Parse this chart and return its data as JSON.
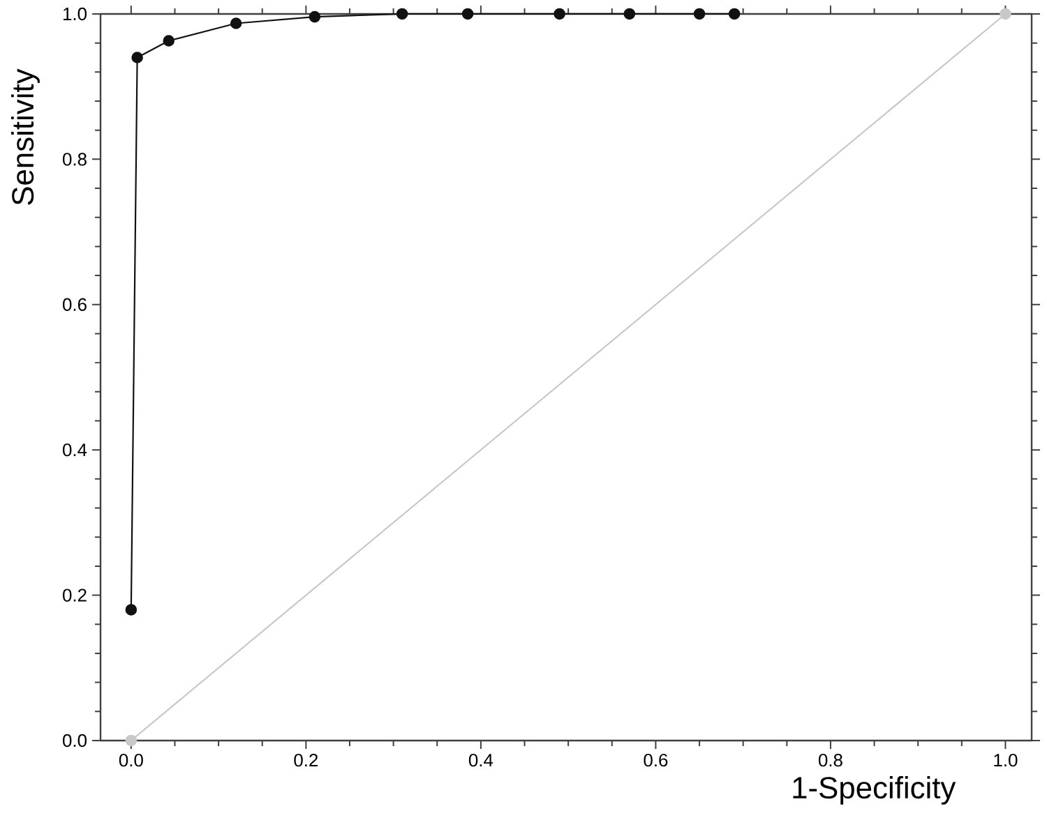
{
  "chart_data": {
    "type": "line",
    "xlabel": "1-Specificity",
    "ylabel": "Sensitivity",
    "xlim": [
      -0.035,
      1.03
    ],
    "ylim": [
      0,
      1
    ],
    "xticks": [
      {
        "value": 0,
        "label": "0.0"
      },
      {
        "value": 0.2,
        "label": "0.2"
      },
      {
        "value": 0.4,
        "label": "0.4"
      },
      {
        "value": 0.6,
        "label": "0.6"
      },
      {
        "value": 0.8,
        "label": "0.8"
      },
      {
        "value": 1,
        "label": "1.0"
      }
    ],
    "yticks": [
      {
        "value": 0,
        "label": "0.0"
      },
      {
        "value": 0.2,
        "label": "0.2"
      },
      {
        "value": 0.4,
        "label": "0.4"
      },
      {
        "value": 0.6,
        "label": "0.6"
      },
      {
        "value": 0.8,
        "label": "0.8"
      },
      {
        "value": 1,
        "label": "1.0"
      }
    ],
    "series": [
      {
        "color": "#c8c8c8",
        "marker": "circle",
        "x": [
          0,
          1
        ],
        "values": [
          0,
          1
        ]
      },
      {
        "color": "#111111",
        "marker": "circle",
        "x": [
          0.0,
          0.007,
          0.043,
          0.12,
          0.21,
          0.31,
          0.385,
          0.49,
          0.57,
          0.65,
          0.69
        ],
        "values": [
          0.18,
          0.94,
          0.963,
          0.987,
          0.996,
          1,
          1,
          1,
          1,
          1,
          1
        ]
      }
    ]
  }
}
